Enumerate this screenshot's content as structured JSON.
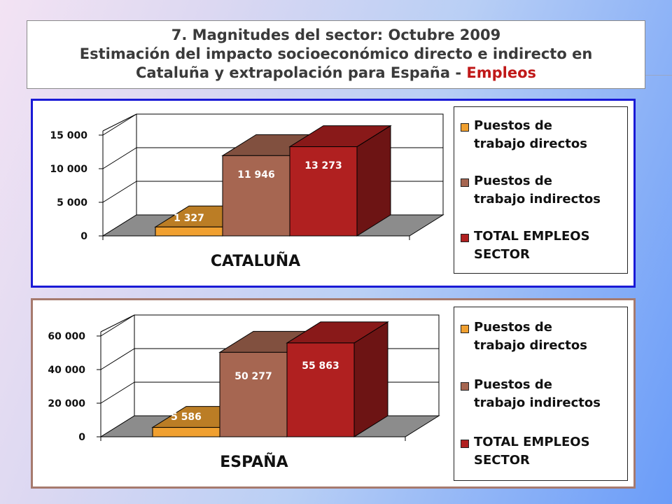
{
  "header": {
    "line1": "7. Magnitudes del sector: Octubre 2009",
    "line2": "Estimación del impacto socioeconómico directo e indirecto en",
    "line3_prefix": "Cataluña y extrapolación para España - ",
    "line3_accent": "Empleos"
  },
  "colors": {
    "directos": "#f0a030",
    "indirectos": "#a66651",
    "total": "#b02020",
    "accent": "#c01818",
    "floor": "#8c8c8c"
  },
  "legend": [
    {
      "label_line1": "Puestos de",
      "label_line2": "trabajo directos"
    },
    {
      "label_line1": "Puestos de",
      "label_line2": "trabajo indirectos"
    },
    {
      "label_line1": "TOTAL EMPLEOS",
      "label_line2": "SECTOR"
    }
  ],
  "chart_data": [
    {
      "type": "bar",
      "category": "CATALUÑA",
      "categories": [
        "CATALUÑA"
      ],
      "series": [
        {
          "name": "Puestos de trabajo directos",
          "values": [
            1327
          ],
          "label": "1 327"
        },
        {
          "name": "Puestos de trabajo indirectos",
          "values": [
            11946
          ],
          "label": "11 946"
        },
        {
          "name": "TOTAL EMPLEOS SECTOR",
          "values": [
            13273
          ],
          "label": "13 273"
        }
      ],
      "yticks": [
        {
          "value": 0,
          "label": "0"
        },
        {
          "value": 5000,
          "label": "5 000"
        },
        {
          "value": 10000,
          "label": "10 000"
        },
        {
          "value": 15000,
          "label": "15 000"
        }
      ],
      "ylim": [
        0,
        15000
      ],
      "grid": true,
      "legend_position": "right"
    },
    {
      "type": "bar",
      "category": "ESPAÑA",
      "categories": [
        "ESPAÑA"
      ],
      "series": [
        {
          "name": "Puestos de trabajo directos",
          "values": [
            5586
          ],
          "label": "5 586"
        },
        {
          "name": "Puestos de trabajo indirectos",
          "values": [
            50277
          ],
          "label": "50 277"
        },
        {
          "name": "TOTAL EMPLEOS SECTOR",
          "values": [
            55863
          ],
          "label": "55 863"
        }
      ],
      "yticks": [
        {
          "value": 0,
          "label": "0"
        },
        {
          "value": 20000,
          "label": "20 000"
        },
        {
          "value": 40000,
          "label": "40 000"
        },
        {
          "value": 60000,
          "label": "60 000"
        }
      ],
      "ylim": [
        0,
        60000
      ],
      "grid": true,
      "legend_position": "right"
    }
  ]
}
